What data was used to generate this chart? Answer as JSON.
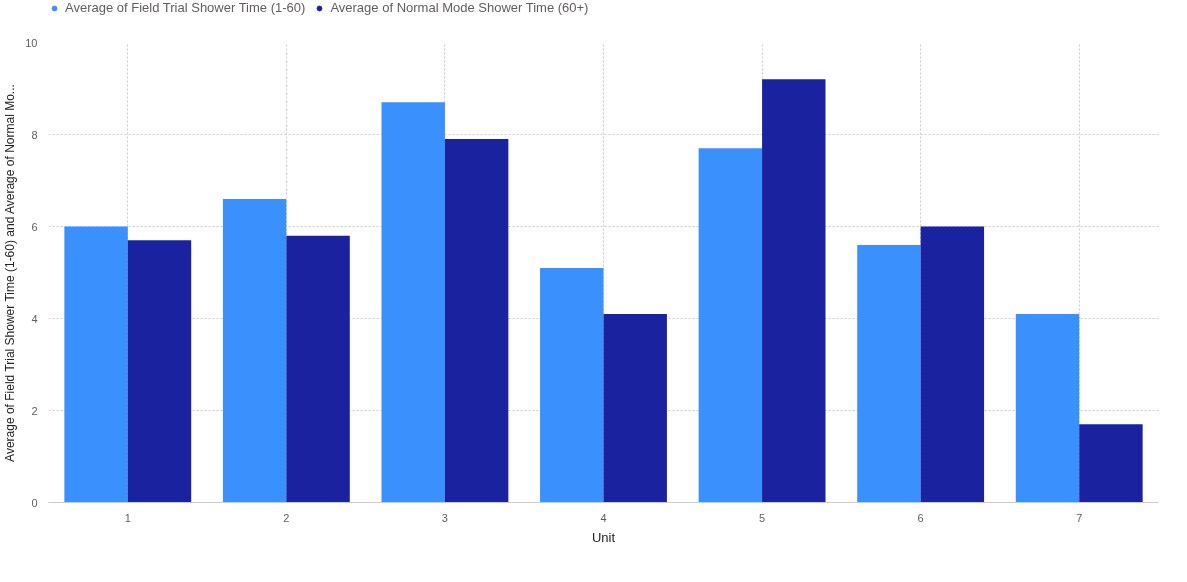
{
  "chart_data": {
    "type": "bar",
    "xlabel": "Unit",
    "ylabel": "Average of Field Trial Shower Time (1-60) and Average of Normal Mo...",
    "categories": [
      "1",
      "2",
      "3",
      "4",
      "5",
      "6",
      "7"
    ],
    "series": [
      {
        "name": "Average of Field Trial Shower Time (1-60)",
        "color": "#3a91fd",
        "values": [
          6.0,
          6.6,
          8.7,
          5.1,
          7.7,
          5.6,
          4.1
        ]
      },
      {
        "name": "Average of Normal Mode Shower Time (60+)",
        "color": "#1a22a0",
        "values": [
          5.7,
          5.8,
          7.9,
          4.1,
          9.2,
          6.0,
          1.7
        ]
      }
    ],
    "ylim": [
      0,
      10
    ],
    "yticks": [
      0,
      2,
      4,
      6,
      8,
      10
    ],
    "grid": true,
    "legend": "top left"
  }
}
